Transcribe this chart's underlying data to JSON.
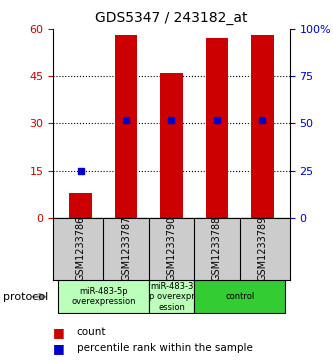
{
  "title": "GDS5347 / 243182_at",
  "samples": [
    "GSM1233786",
    "GSM1233787",
    "GSM1233790",
    "GSM1233788",
    "GSM1233789"
  ],
  "bar_values": [
    8,
    58,
    46,
    57,
    58
  ],
  "percentile_values": [
    25,
    52,
    52,
    52,
    52
  ],
  "bar_color": "#cc0000",
  "percentile_color": "#0000cc",
  "ylim_left": [
    0,
    60
  ],
  "ylim_right": [
    0,
    100
  ],
  "yticks_left": [
    0,
    15,
    30,
    45,
    60
  ],
  "yticks_right": [
    0,
    25,
    50,
    75,
    100
  ],
  "ytick_labels_left": [
    "0",
    "15",
    "30",
    "45",
    "60"
  ],
  "ytick_labels_right": [
    "0",
    "25",
    "50",
    "75",
    "100%"
  ],
  "groups": [
    {
      "label": "miR-483-5p\noverexpression",
      "samples": [
        0,
        1
      ],
      "color": "#bbffbb"
    },
    {
      "label": "miR-483-3\np overexpr\nession",
      "samples": [
        2
      ],
      "color": "#bbffbb"
    },
    {
      "label": "control",
      "samples": [
        3,
        4
      ],
      "color": "#33cc33"
    }
  ],
  "protocol_label": "protocol",
  "legend_count_label": "count",
  "legend_percentile_label": "percentile rank within the sample",
  "background_color": "#ffffff",
  "sample_bg_color": "#cccccc",
  "bar_width": 0.5,
  "grid_yticks": [
    15,
    30,
    45
  ]
}
